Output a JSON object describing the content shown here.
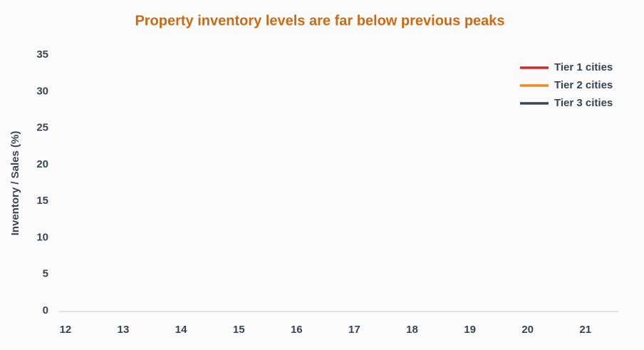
{
  "chart_data": {
    "type": "line",
    "title": "Property inventory levels are far below previous peaks",
    "y_label": "Inventory / Sales (%)",
    "x": [
      12,
      13,
      14,
      15,
      16,
      17,
      18,
      19,
      20,
      21
    ],
    "xlim": [
      11.89,
      21.57
    ],
    "xticks": [
      12,
      13,
      14,
      15,
      16,
      17,
      18,
      19,
      20,
      21
    ],
    "ylim": [
      0,
      35
    ],
    "yticks": [
      0,
      5,
      10,
      15,
      20,
      25,
      30,
      35
    ],
    "grid": false,
    "legend": "upper right",
    "series": [
      {
        "name": "Tier 1 cities",
        "color": "#d42a2a",
        "values": [
          null,
          null,
          null,
          null,
          null,
          null,
          null,
          null,
          null,
          null
        ]
      },
      {
        "name": "Tier 2 cities",
        "color": "#f08a1c",
        "values": [
          null,
          null,
          null,
          null,
          null,
          null,
          null,
          null,
          null,
          null
        ]
      },
      {
        "name": "Tier 3 cities",
        "color": "#3d4653",
        "values": [
          null,
          null,
          null,
          null,
          null,
          null,
          null,
          null,
          null,
          null
        ]
      }
    ]
  }
}
